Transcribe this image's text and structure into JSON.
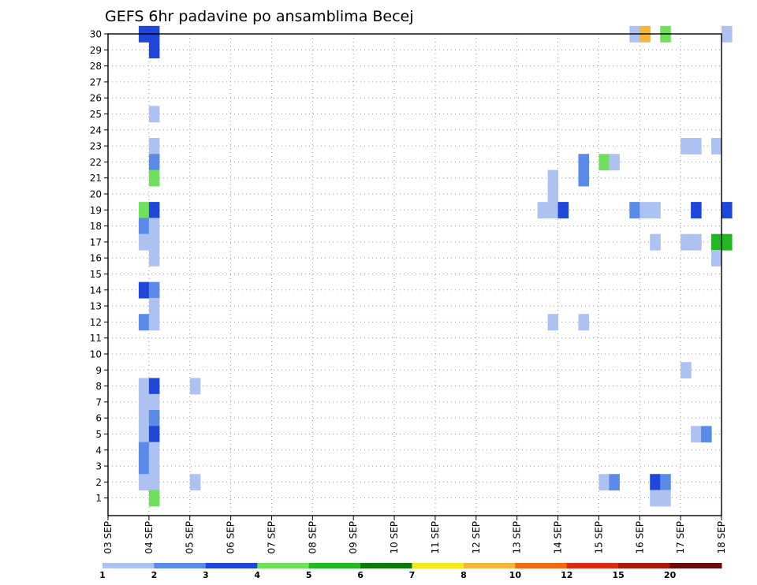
{
  "chart_data": {
    "type": "heatmap",
    "title": "GEFS 6hr padavine po ansamblima Becej",
    "xlabel": "",
    "ylabel": "",
    "x_tick_labels": [
      "03 SEP",
      "04 SEP",
      "05 SEP",
      "06 SEP",
      "07 SEP",
      "08 SEP",
      "09 SEP",
      "10 SEP",
      "11 SEP",
      "12 SEP",
      "13 SEP",
      "14 SEP",
      "15 SEP",
      "16 SEP",
      "17 SEP",
      "18 SEP"
    ],
    "x_range_days": [
      0,
      15
    ],
    "y_tick_labels": [
      "1",
      "2",
      "3",
      "4",
      "5",
      "6",
      "7",
      "8",
      "9",
      "10",
      "11",
      "12",
      "13",
      "14",
      "15",
      "16",
      "17",
      "18",
      "19",
      "20",
      "21",
      "22",
      "23",
      "24",
      "25",
      "26",
      "27",
      "28",
      "29",
      "30"
    ],
    "y_range": [
      0,
      30
    ],
    "grid": true,
    "legend": {
      "placement": "bottom",
      "labels": [
        "1",
        "2",
        "3",
        "4",
        "5",
        "6",
        "7",
        "8",
        "10",
        "12",
        "15",
        "20"
      ],
      "colors": [
        "#aec2f2",
        "#5a8be8",
        "#1e46d8",
        "#6fe05a",
        "#22b822",
        "#0a7a0a",
        "#f2e81a",
        "#f5b43a",
        "#f26a14",
        "#dc2a14",
        "#a51a0a",
        "#6a0a0a"
      ]
    },
    "colors_by_level": {
      "1": "#aec2f2",
      "2": "#5a8be8",
      "3": "#1e46d8",
      "4": "#6fe05a",
      "5": "#22b822",
      "6": "#0a7a0a",
      "8": "#f5b43a"
    },
    "cells": [
      [
        0.75,
        30,
        3
      ],
      [
        1.0,
        30,
        3
      ],
      [
        1.0,
        29,
        3
      ],
      [
        1.0,
        25,
        1
      ],
      [
        1.0,
        23,
        1
      ],
      [
        1.0,
        22,
        2
      ],
      [
        1.0,
        21,
        4
      ],
      [
        0.75,
        19,
        4
      ],
      [
        1.0,
        19,
        3
      ],
      [
        0.75,
        18,
        2
      ],
      [
        1.0,
        18,
        1
      ],
      [
        0.75,
        17,
        1
      ],
      [
        1.0,
        17,
        1
      ],
      [
        1.0,
        16,
        1
      ],
      [
        0.75,
        14,
        3
      ],
      [
        1.0,
        14,
        2
      ],
      [
        1.0,
        13,
        1
      ],
      [
        0.75,
        12,
        2
      ],
      [
        1.0,
        12,
        1
      ],
      [
        0.75,
        8,
        1
      ],
      [
        1.0,
        8,
        3
      ],
      [
        0.75,
        7,
        1
      ],
      [
        1.0,
        7,
        1
      ],
      [
        0.75,
        6,
        1
      ],
      [
        1.0,
        6,
        2
      ],
      [
        0.75,
        5,
        1
      ],
      [
        1.0,
        5,
        3
      ],
      [
        0.75,
        4,
        2
      ],
      [
        1.0,
        4,
        1
      ],
      [
        0.75,
        3,
        2
      ],
      [
        1.0,
        3,
        1
      ],
      [
        0.75,
        2,
        1
      ],
      [
        1.0,
        2,
        1
      ],
      [
        1.0,
        1,
        4
      ],
      [
        2.0,
        8,
        1
      ],
      [
        2.0,
        2,
        1
      ],
      [
        10.75,
        21,
        1
      ],
      [
        10.75,
        20,
        1
      ],
      [
        10.5,
        19,
        1
      ],
      [
        10.75,
        19,
        1
      ],
      [
        11.0,
        19,
        3
      ],
      [
        10.75,
        12,
        1
      ],
      [
        11.5,
        22,
        2
      ],
      [
        11.5,
        21,
        2
      ],
      [
        11.5,
        12,
        1
      ],
      [
        12.0,
        22,
        4
      ],
      [
        12.25,
        22,
        1
      ],
      [
        12.0,
        2,
        1
      ],
      [
        12.25,
        2,
        2
      ],
      [
        12.75,
        30,
        1
      ],
      [
        13.0,
        30,
        8
      ],
      [
        13.5,
        30,
        4
      ],
      [
        12.75,
        19,
        2
      ],
      [
        13.0,
        19,
        1
      ],
      [
        13.25,
        19,
        1
      ],
      [
        13.25,
        17,
        1
      ],
      [
        13.25,
        2,
        3
      ],
      [
        13.5,
        2,
        2
      ],
      [
        13.25,
        1,
        1
      ],
      [
        13.5,
        1,
        1
      ],
      [
        14.0,
        23,
        1
      ],
      [
        14.25,
        23,
        1
      ],
      [
        14.75,
        23,
        1
      ],
      [
        14.25,
        19,
        3
      ],
      [
        14.0,
        17,
        1
      ],
      [
        14.25,
        17,
        1
      ],
      [
        14.0,
        9,
        1
      ],
      [
        14.25,
        5,
        1
      ],
      [
        14.5,
        5,
        2
      ],
      [
        14.75,
        17,
        5
      ],
      [
        15.0,
        17,
        5
      ],
      [
        14.75,
        16,
        1
      ],
      [
        15.0,
        30,
        1
      ],
      [
        15.0,
        19,
        3
      ]
    ]
  }
}
